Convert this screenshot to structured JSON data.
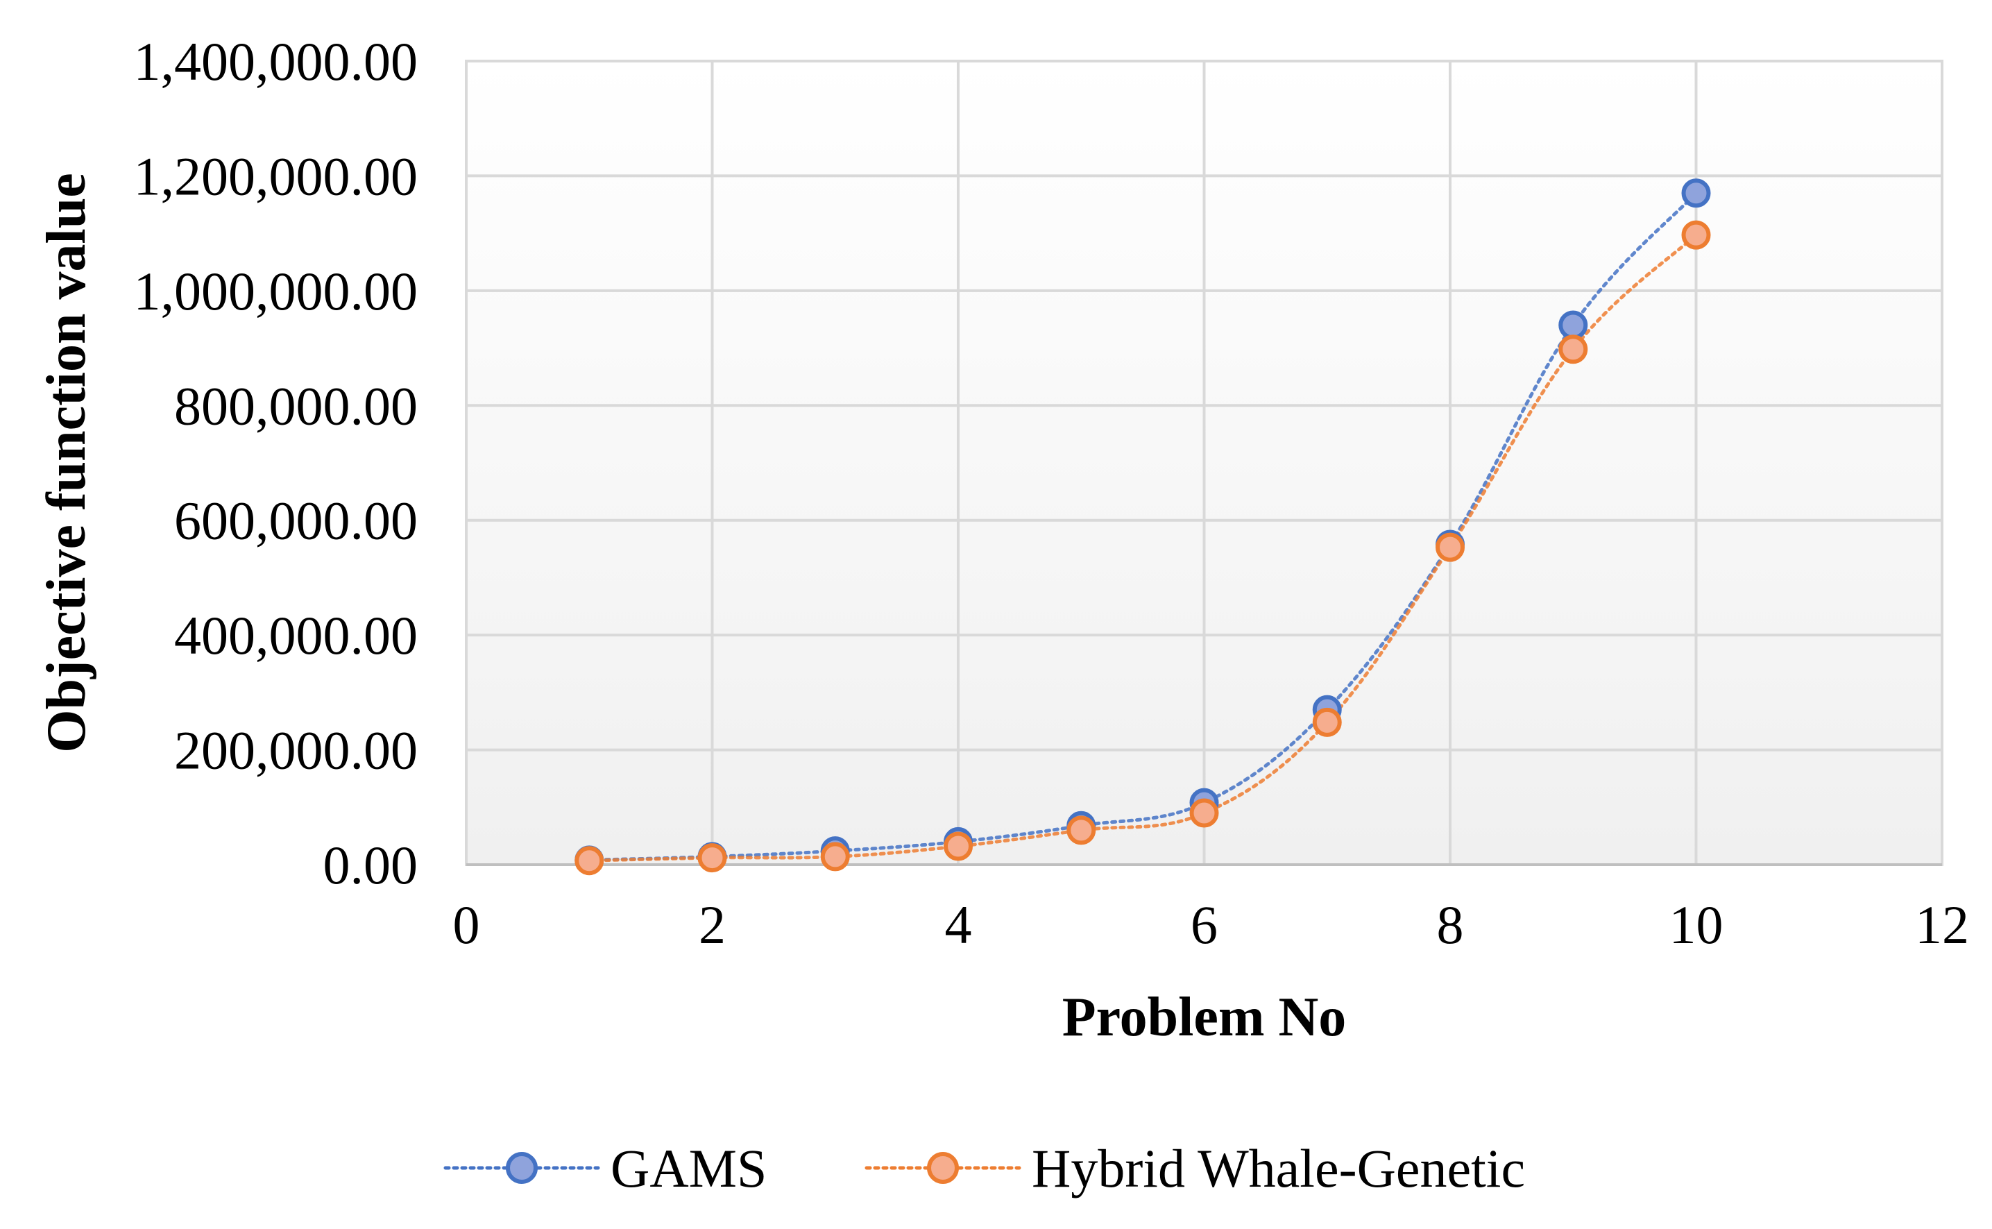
{
  "chart_data": {
    "type": "scatter",
    "title": "",
    "xlabel": "Problem No",
    "ylabel": "Objective function value",
    "xlim": [
      0,
      12
    ],
    "ylim": [
      0,
      1400000
    ],
    "x_ticks": [
      0,
      2,
      4,
      6,
      8,
      10,
      12
    ],
    "y_ticks": [
      0,
      200000,
      400000,
      600000,
      800000,
      1000000,
      1200000,
      1400000
    ],
    "x_tick_labels": [
      "0",
      "2",
      "4",
      "6",
      "8",
      "10",
      "12"
    ],
    "y_tick_labels": [
      "0.00",
      "200,000.00",
      "400,000.00",
      "600,000.00",
      "800,000.00",
      "1,000,000.00",
      "1,200,000.00",
      "1,400,000.00"
    ],
    "grid": true,
    "legend_position": "bottom",
    "series": [
      {
        "name": "GAMS",
        "color": "#4472c4",
        "fill": "#8fa3dc",
        "x": [
          1,
          2,
          3,
          4,
          5,
          6,
          7,
          8,
          9,
          10
        ],
        "values": [
          8000,
          14000,
          24000,
          40000,
          68000,
          108000,
          270000,
          558000,
          940000,
          1170000
        ]
      },
      {
        "name": "Hybrid Whale-Genetic",
        "color": "#ed7d31",
        "fill": "#f6ad8e",
        "x": [
          1,
          2,
          3,
          4,
          5,
          6,
          7,
          8,
          9,
          10
        ],
        "values": [
          7000,
          12000,
          14000,
          32000,
          60000,
          90000,
          248000,
          553000,
          898000,
          1097000
        ]
      }
    ]
  }
}
